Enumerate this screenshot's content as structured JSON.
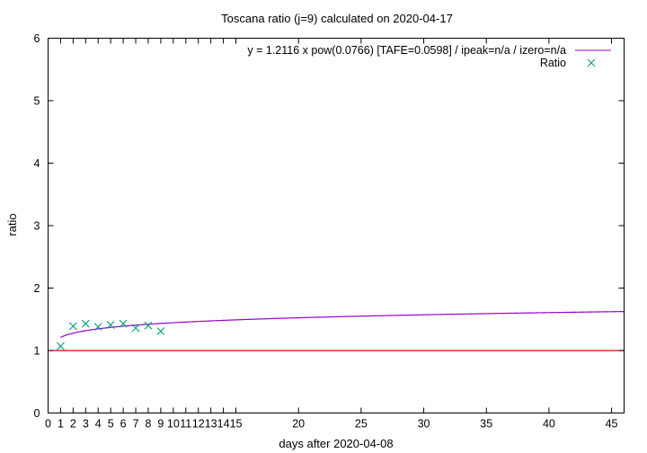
{
  "chart_data": {
    "type": "scatter",
    "title": "Toscana ratio (j=9) calculated on 2020-04-17",
    "xlabel": "days after 2020-04-08",
    "ylabel": "ratio",
    "xlim": [
      0,
      46
    ],
    "ylim": [
      0,
      6
    ],
    "xticks": [
      0,
      1,
      2,
      3,
      4,
      5,
      6,
      7,
      8,
      9,
      10,
      11,
      12,
      13,
      14,
      15,
      20,
      25,
      30,
      35,
      40,
      45
    ],
    "yticks": [
      0,
      1,
      2,
      3,
      4,
      5,
      6
    ],
    "grid": false,
    "legend_position": "top-right",
    "series": [
      {
        "name": "y = 1.2116 x pow(0.0766)  [TAFE=0.0598] / ipeak=n/a / izero=n/a",
        "kind": "line",
        "color": "#9400d3",
        "model": {
          "a": 1.2116,
          "b": 0.0766
        },
        "x_range": [
          1,
          46
        ]
      },
      {
        "name": "Ratio",
        "kind": "points",
        "marker": "x",
        "color": "#009e73",
        "x": [
          1,
          2,
          3,
          4,
          5,
          6,
          7,
          8,
          9
        ],
        "y": [
          1.07,
          1.39,
          1.43,
          1.38,
          1.41,
          1.43,
          1.36,
          1.4,
          1.31
        ]
      },
      {
        "kind": "hline",
        "color": "#e00000",
        "y": 1
      }
    ]
  }
}
